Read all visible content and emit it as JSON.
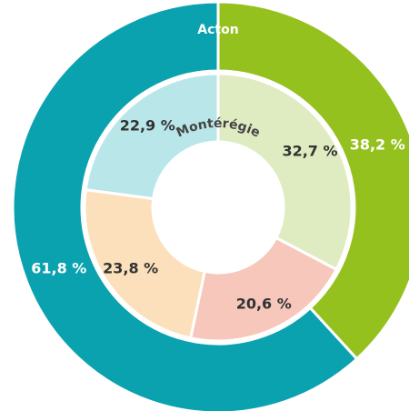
{
  "chart_data": {
    "type": "donut",
    "series": [
      {
        "name": "Acton",
        "values": [
          38.2,
          61.8
        ],
        "value_labels": [
          "38,2 %",
          "61,8 %"
        ],
        "colors": [
          "#95c11f",
          "#0ba2b0"
        ]
      },
      {
        "name": "Montérégie",
        "values": [
          32.7,
          20.6,
          23.8,
          22.9
        ],
        "value_labels": [
          "32,7 %",
          "20,6 %",
          "23,8 %",
          "22,9 %"
        ],
        "colors": [
          "#dfecc1",
          "#f6c7ba",
          "#fbe0bb",
          "#b9e6e9"
        ]
      }
    ]
  }
}
